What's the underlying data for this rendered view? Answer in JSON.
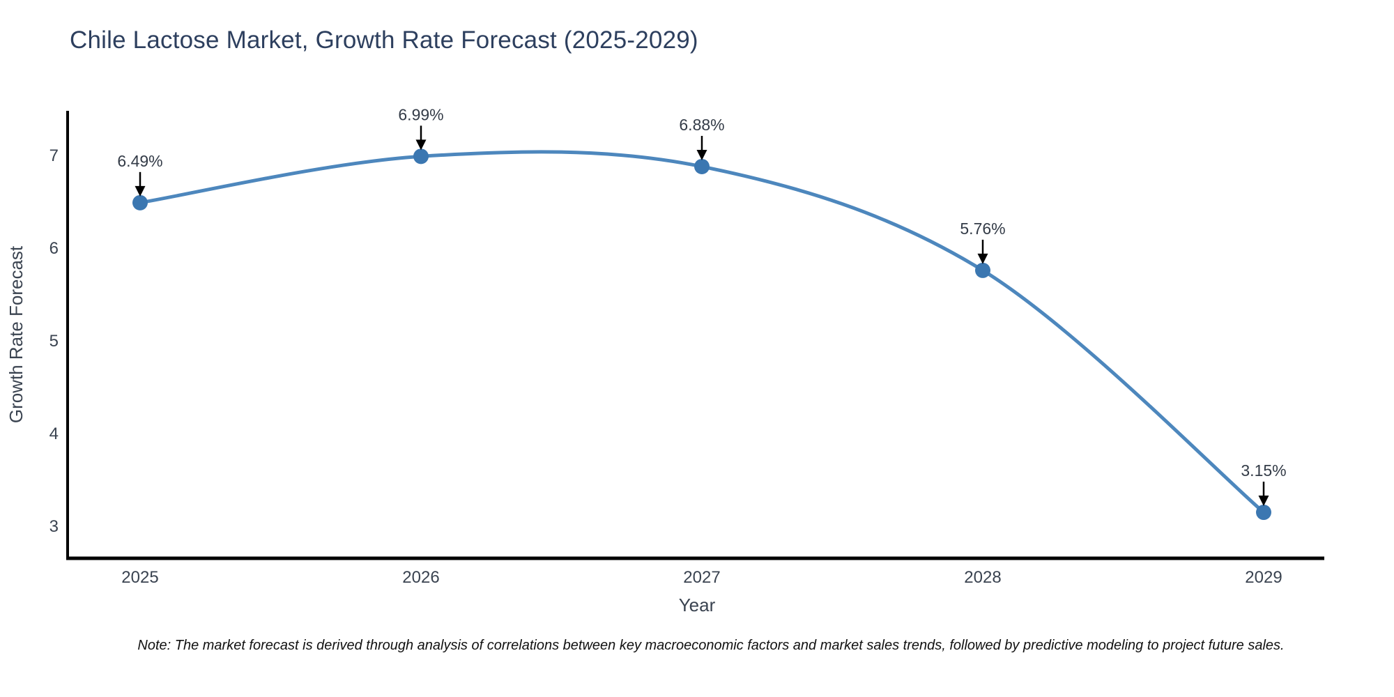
{
  "title": "Chile Lactose Market, Growth Rate Forecast (2025-2029)",
  "note": "Note: The market forecast is derived through analysis of correlations between key macroeconomic factors and market sales trends, followed by predictive modeling to project future sales.",
  "chart_data": {
    "type": "line",
    "title": "Chile Lactose Market, Growth Rate Forecast (2025-2029)",
    "x": [
      2025,
      2026,
      2027,
      2028,
      2029
    ],
    "series": [
      {
        "name": "Growth Rate Forecast",
        "values": [
          6.49,
          6.99,
          6.88,
          5.76,
          3.15
        ]
      }
    ],
    "point_labels": [
      "6.49%",
      "6.99%",
      "6.88%",
      "5.76%",
      "3.15%"
    ],
    "xlabel": "Year",
    "ylabel": "Growth Rate Forecast",
    "xticks": [
      2025,
      2026,
      2027,
      2028,
      2029
    ],
    "yticks": [
      3,
      4,
      5,
      6,
      7
    ],
    "ylim": [
      2.65,
      7.48
    ],
    "xlim": [
      2024.74,
      2029.22
    ],
    "grid": false,
    "legend": "none",
    "line_shape": "spline",
    "annotation_style": "value label above each point with downward black arrow"
  },
  "colors": {
    "line": "#4d87bd",
    "marker": "#3b77b1",
    "title_text": "#2d3f5e",
    "axis_text": "#3a4350",
    "axis_line": "#000000",
    "annotation_text": "#333b47",
    "arrow": "#000000",
    "background": "#ffffff",
    "note_text": "#111111"
  }
}
